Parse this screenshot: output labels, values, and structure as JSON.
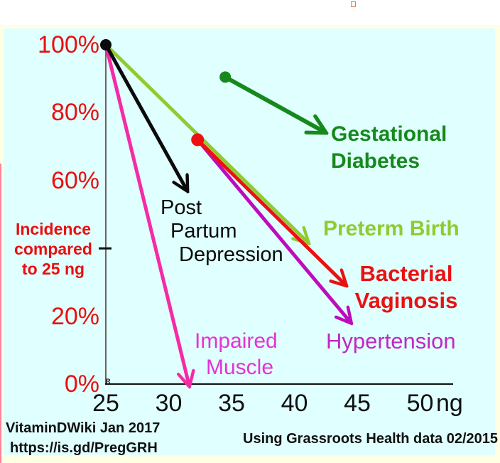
{
  "chart_data": {
    "type": "line",
    "title": "",
    "x_axis": {
      "ticks": [
        25,
        30,
        35,
        40,
        45,
        50
      ],
      "label_suffix": "ng",
      "range": [
        25,
        52.5
      ]
    },
    "y_axis": {
      "title_lines": [
        "Incidence",
        "compared",
        "to 25 ng"
      ],
      "ticks_labeled": [
        100,
        80,
        60,
        20,
        0
      ],
      "ticks_unlabeled": [
        40
      ],
      "unit": "%",
      "range": [
        0,
        100
      ]
    },
    "series": [
      {
        "name": "Post Partum Depression",
        "label_lines": [
          "Post",
          "Partum",
          "Depression"
        ],
        "color": "#0a0a0a",
        "points": [
          [
            25,
            100
          ],
          [
            31.4,
            57.5
          ]
        ],
        "stroke_width": 5
      },
      {
        "name": "Impaired Muscle",
        "label_lines": [
          "Impaired",
          "Muscle"
        ],
        "color": "#f52ba6",
        "text_color": "#e732d3",
        "points": [
          [
            25,
            100
          ],
          [
            31.6,
            0
          ]
        ],
        "stroke_width": 5
      },
      {
        "name": "Preterm Birth",
        "label_lines": [
          "Preterm Birth"
        ],
        "color": "#8fcb30",
        "points": [
          [
            25,
            100
          ],
          [
            41.0,
            42
          ]
        ],
        "stroke_width": 5
      },
      {
        "name": "Bacterial Vaginosis",
        "label_lines": [
          "Bacterial",
          "Vaginosis"
        ],
        "color": "#eb1111",
        "points": [
          [
            32.3,
            72
          ],
          [
            44.0,
            29.5
          ]
        ],
        "stroke_width": 5
      },
      {
        "name": "Hypertension",
        "label_lines": [
          "Hypertension"
        ],
        "color": "#bc0cbc",
        "text_color": "#c128c1",
        "points": [
          [
            32.3,
            72
          ],
          [
            44.4,
            18.5
          ]
        ],
        "stroke_width": 5
      },
      {
        "name": "Gestational Diabetes",
        "label_lines": [
          "Gestational",
          "Diabetes"
        ],
        "color": "#17891c",
        "points": [
          [
            34.5,
            90.5
          ],
          [
            42.3,
            74.5
          ]
        ],
        "stroke_width": 6
      }
    ],
    "dots": [
      {
        "x": 25,
        "y": 100,
        "color": "#0a0a0a",
        "r": 8
      },
      {
        "x": 32.3,
        "y": 72,
        "color": "#eb1111",
        "r": 9
      },
      {
        "x": 34.5,
        "y": 90.5,
        "color": "#17891c",
        "r": 8
      }
    ],
    "origin_mark": "R"
  },
  "footer": {
    "left_line1": "VitaminDWiki Jan 2017",
    "left_line2": "https://is.gd/PregGRH",
    "right": "Using Grassroots Health data 02/2015"
  },
  "colors": {
    "plot_background": "#e0ffff",
    "outer_background": "#feffe3",
    "axis_label_red": "#e90f0f"
  }
}
